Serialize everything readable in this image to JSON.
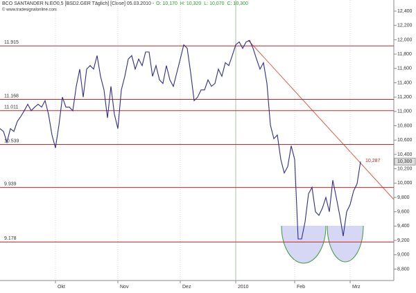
{
  "chart_data": {
    "type": "line",
    "title": "BCO SANTANDER N.EO0,5 [BSD2.GER  Täglich] [Close] 05.03.2010 -",
    "ohlc": [
      "O: 10,170",
      "H: 10,320",
      "L: 10,070",
      "C: 10,300"
    ],
    "copyright": "© www.tradesignalonline.com",
    "color": "#2e2e86",
    "categories": [
      null,
      null,
      null,
      null,
      null,
      null,
      null,
      null,
      null,
      null,
      null,
      null,
      null,
      null,
      null,
      null,
      "Okt",
      null,
      null,
      null,
      null,
      null,
      null,
      null,
      null,
      null,
      null,
      null,
      null,
      null,
      null,
      null,
      null,
      null,
      "Nov",
      null,
      null,
      null,
      null,
      null,
      null,
      null,
      null,
      null,
      null,
      null,
      null,
      null,
      null,
      null,
      null,
      null,
      "Dez",
      null,
      null,
      null,
      null,
      null,
      null,
      null,
      null,
      null,
      null,
      null,
      null,
      null,
      null,
      null,
      "2010",
      null,
      null,
      null,
      null,
      null,
      null,
      null,
      null,
      null,
      null,
      null,
      null,
      null,
      null,
      null,
      null,
      "Feb",
      null,
      null,
      null,
      null,
      null,
      null,
      null,
      null,
      null,
      null,
      null,
      null,
      null,
      null,
      null,
      "Mrz",
      null,
      null,
      null
    ],
    "values": [
      10.76,
      10.72,
      10.57,
      10.76,
      10.72,
      10.86,
      10.93,
      11.01,
      11.1,
      11.01,
      11.06,
      11.1,
      11.06,
      11.15,
      10.96,
      10.67,
      10.49,
      10.81,
      11.2,
      11.06,
      11.06,
      11.01,
      11.35,
      11.59,
      11.2,
      11.59,
      11.64,
      11.59,
      11.78,
      11.49,
      11.3,
      10.91,
      11.35,
      10.96,
      10.76,
      11.3,
      11.49,
      11.73,
      11.78,
      11.59,
      11.73,
      11.64,
      11.83,
      11.83,
      11.49,
      11.64,
      11.44,
      11.39,
      11.64,
      11.44,
      11.35,
      11.54,
      11.73,
      11.93,
      11.88,
      11.54,
      11.15,
      11.2,
      11.3,
      11.3,
      11.44,
      11.35,
      11.39,
      11.59,
      11.49,
      11.68,
      11.64,
      11.78,
      11.93,
      11.97,
      11.88,
      11.97,
      11.99,
      11.88,
      11.73,
      11.59,
      11.68,
      11.39,
      10.81,
      10.62,
      10.67,
      10.33,
      10.14,
      10.23,
      10.52,
      10.33,
      9.22,
      9.22,
      9.46,
      9.85,
      9.94,
      9.6,
      9.55,
      9.65,
      9.8,
      9.6,
      10.04,
      9.8,
      9.55,
      9.26,
      9.6,
      9.7,
      9.89,
      9.99,
      10.3
    ],
    "ylim": [
      8.64,
      12.555
    ],
    "yticks": [
      {
        "value": 8.8,
        "label": "8,800"
      },
      {
        "value": 9.0,
        "label": "9,000"
      },
      {
        "value": 9.2,
        "label": "9,200"
      },
      {
        "value": 9.4,
        "label": "9,400"
      },
      {
        "value": 9.6,
        "label": "9,600"
      },
      {
        "value": 9.8,
        "label": "9,800"
      },
      {
        "value": 10.0,
        "label": "10,000"
      },
      {
        "value": 10.2,
        "label": "10,200"
      },
      {
        "value": 10.4,
        "label": "10,400"
      },
      {
        "value": 10.6,
        "label": "10,600"
      },
      {
        "value": 10.8,
        "label": "10,800"
      },
      {
        "value": 11.0,
        "label": "11,000"
      },
      {
        "value": 11.2,
        "label": "11,200"
      },
      {
        "value": 11.4,
        "label": "11,400"
      },
      {
        "value": 11.6,
        "label": "11,600"
      },
      {
        "value": 11.8,
        "label": "11,800"
      },
      {
        "value": 12.0,
        "label": "12,000"
      },
      {
        "value": 12.2,
        "label": "12,200"
      },
      {
        "value": 12.4,
        "label": "12,400"
      }
    ],
    "levels": [
      {
        "value": 11.915,
        "label": "11.915"
      },
      {
        "value": 11.168,
        "label": "11.168"
      },
      {
        "value": 11.011,
        "label": "11.011"
      },
      {
        "value": 10.539,
        "label": "10.539"
      },
      {
        "value": 9.939,
        "label": "9.939"
      },
      {
        "value": 9.178,
        "label": "9.178"
      }
    ],
    "level_color": "#cc2222",
    "trendline_label": "10,287",
    "last_price_label": "10,300"
  }
}
